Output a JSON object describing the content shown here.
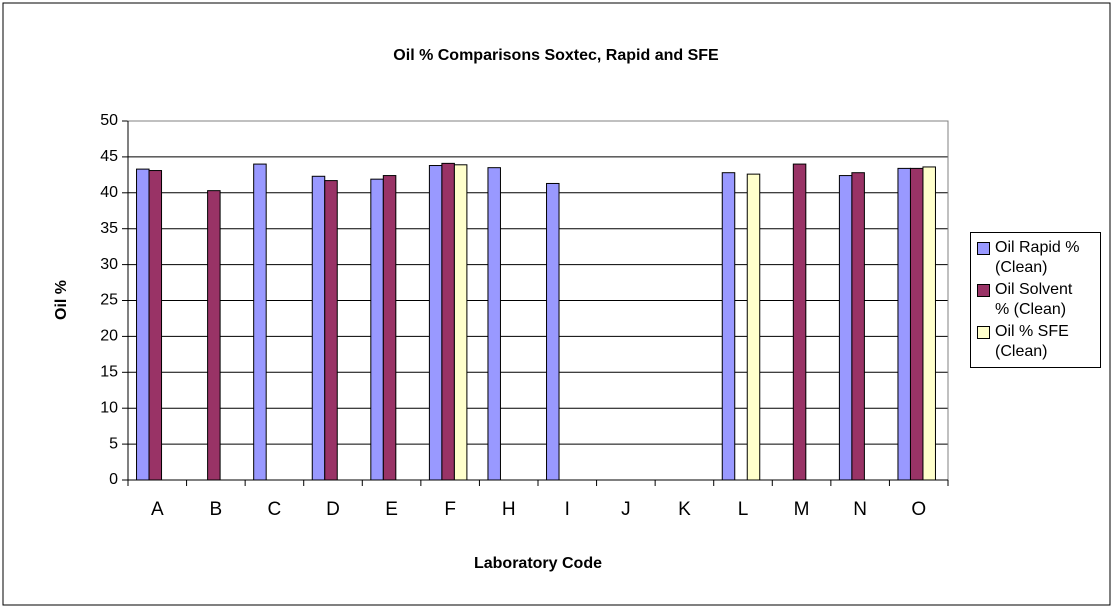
{
  "chart_data": {
    "type": "bar",
    "title": "Oil % Comparisons Soxtec, Rapid and SFE",
    "x_label": "Laboratory Code",
    "y_label": "Oil %",
    "categories": [
      "A",
      "B",
      "C",
      "D",
      "E",
      "F",
      "H",
      "I",
      "J",
      "K",
      "L",
      "M",
      "N",
      "O"
    ],
    "series": [
      {
        "name": "Oil Rapid % (Clean)",
        "color": "#9999ff",
        "values": [
          43.3,
          null,
          44.0,
          42.3,
          41.9,
          43.8,
          43.5,
          41.3,
          null,
          null,
          42.8,
          null,
          42.4,
          43.4
        ]
      },
      {
        "name": "Oil Solvent % (Clean)",
        "color": "#993366",
        "values": [
          43.1,
          40.3,
          null,
          41.7,
          42.4,
          44.1,
          null,
          null,
          null,
          null,
          null,
          44.0,
          42.8,
          43.4
        ]
      },
      {
        "name": "Oil % SFE (Clean)",
        "color": "#ffffcc",
        "values": [
          null,
          null,
          null,
          null,
          null,
          43.9,
          null,
          null,
          null,
          null,
          42.6,
          null,
          null,
          43.6
        ]
      }
    ],
    "ylim": [
      0,
      50
    ],
    "yticks": [
      0,
      5,
      10,
      15,
      20,
      25,
      30,
      35,
      40,
      45,
      50
    ],
    "grid": true,
    "legend": "right"
  }
}
